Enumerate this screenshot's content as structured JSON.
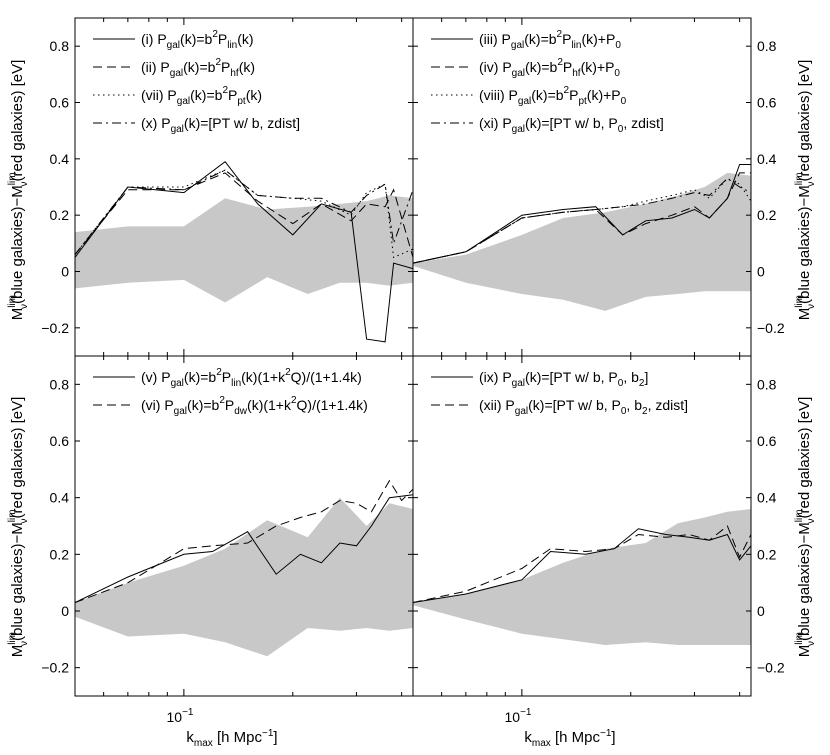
{
  "figure": {
    "xlabel": "k_max [h Mpc^-1]",
    "ylabel_left": "M_ν^lim(blue galaxies)−M_ν^lim(red galaxies) [eV]",
    "ylabel_right": "M_ν^lim(blue galaxies)−M_ν^lim(red galaxies) [eV]",
    "xtick_label": "10^-1",
    "ytick_labels": [
      "−0.2",
      "0",
      "0.2",
      "0.4",
      "0.6",
      "0.8"
    ]
  },
  "chart_data": [
    {
      "type": "line",
      "panel": "top-left",
      "xscale": "log",
      "xlim": [
        0.05,
        0.43
      ],
      "ylim": [
        -0.3,
        0.9
      ],
      "band": {
        "x": [
          0.05,
          0.07,
          0.1,
          0.13,
          0.17,
          0.22,
          0.27,
          0.32,
          0.37,
          0.43
        ],
        "upper": [
          0.14,
          0.16,
          0.16,
          0.26,
          0.22,
          0.23,
          0.24,
          0.25,
          0.27,
          0.26
        ],
        "lower": [
          -0.06,
          -0.04,
          -0.03,
          -0.11,
          -0.02,
          -0.08,
          -0.04,
          -0.04,
          -0.05,
          -0.04
        ]
      },
      "legend": {
        "position": "top-left",
        "entries": [
          {
            "prefix": "(i) P",
            "sub1": "gal",
            "mid": "(k)=b",
            "sup": "2",
            "mid2": "P",
            "sub2": "lin",
            "tail": "(k)"
          },
          {
            "prefix": "(ii) P",
            "sub1": "gal",
            "mid": "(k)=b",
            "sup": "2",
            "mid2": "P",
            "sub2": "hf",
            "tail": "(k)"
          },
          {
            "prefix": "(vii) P",
            "sub1": "gal",
            "mid": "(k)=b",
            "sup": "2",
            "mid2": "P",
            "sub2": "pt",
            "tail": "(k)"
          },
          {
            "prefix": "(x) P",
            "sub1": "gal",
            "mid": "(k)=[PT w/ b, zdist]",
            "sup": "",
            "mid2": "",
            "sub2": "",
            "tail": ""
          }
        ]
      },
      "series": [
        {
          "name": "(i)",
          "style": "solid",
          "x": [
            0.05,
            0.07,
            0.1,
            0.13,
            0.16,
            0.2,
            0.24,
            0.29,
            0.32,
            0.36,
            0.38,
            0.43
          ],
          "y": [
            0.05,
            0.3,
            0.28,
            0.39,
            0.24,
            0.13,
            0.24,
            0.21,
            -0.24,
            -0.25,
            0.03,
            0.01
          ]
        },
        {
          "name": "(ii)",
          "style": "dashed",
          "x": [
            0.05,
            0.07,
            0.1,
            0.13,
            0.16,
            0.2,
            0.24,
            0.29,
            0.32,
            0.36,
            0.38,
            0.43
          ],
          "y": [
            0.06,
            0.29,
            0.29,
            0.35,
            0.25,
            0.17,
            0.24,
            0.18,
            0.24,
            0.23,
            0.29,
            0.05
          ]
        },
        {
          "name": "(vii)",
          "style": "dotted",
          "x": [
            0.05,
            0.07,
            0.1,
            0.13,
            0.16,
            0.2,
            0.24,
            0.29,
            0.32,
            0.36,
            0.38,
            0.43
          ],
          "y": [
            0.06,
            0.3,
            0.3,
            0.36,
            0.27,
            0.26,
            0.25,
            0.2,
            0.28,
            0.31,
            0.05,
            0.08
          ]
        },
        {
          "name": "(x)",
          "style": "dashdot",
          "x": [
            0.05,
            0.07,
            0.1,
            0.13,
            0.16,
            0.2,
            0.24,
            0.29,
            0.32,
            0.36,
            0.38,
            0.43
          ],
          "y": [
            0.06,
            0.3,
            0.29,
            0.36,
            0.27,
            0.26,
            0.26,
            0.21,
            0.27,
            0.31,
            0.1,
            0.29
          ]
        }
      ]
    },
    {
      "type": "line",
      "panel": "top-right",
      "xscale": "log",
      "xlim": [
        0.05,
        0.43
      ],
      "ylim": [
        -0.3,
        0.9
      ],
      "band": {
        "x": [
          0.05,
          0.07,
          0.1,
          0.13,
          0.17,
          0.22,
          0.27,
          0.32,
          0.37,
          0.43
        ],
        "upper": [
          0.03,
          0.06,
          0.13,
          0.19,
          0.21,
          0.24,
          0.27,
          0.3,
          0.35,
          0.34
        ],
        "lower": [
          0.02,
          -0.04,
          -0.08,
          -0.1,
          -0.14,
          -0.09,
          -0.08,
          -0.07,
          -0.07,
          -0.07
        ]
      },
      "legend": {
        "position": "top-left",
        "entries": [
          {
            "prefix": "(iii) P",
            "sub1": "gal",
            "mid": "(k)=b",
            "sup": "2",
            "mid2": "P",
            "sub2": "lin",
            "tail": "(k)+P",
            "sub3": "0"
          },
          {
            "prefix": "(iv) P",
            "sub1": "gal",
            "mid": "(k)=b",
            "sup": "2",
            "mid2": "P",
            "sub2": "hf",
            "tail": "(k)+P",
            "sub3": "0"
          },
          {
            "prefix": "(viii) P",
            "sub1": "gal",
            "mid": "(k)=b",
            "sup": "2",
            "mid2": "P",
            "sub2": "pt",
            "tail": "(k)+P",
            "sub3": "0"
          },
          {
            "prefix": "(xi) P",
            "sub1": "gal",
            "mid": "(k)=[PT w/ b, P",
            "sup": "",
            "mid2": "",
            "sub2": "0",
            "tail": ", zdist]",
            "sub3": ""
          }
        ]
      },
      "series": [
        {
          "name": "(iii)",
          "style": "solid",
          "x": [
            0.05,
            0.07,
            0.1,
            0.13,
            0.16,
            0.19,
            0.22,
            0.26,
            0.3,
            0.33,
            0.37,
            0.4,
            0.43
          ],
          "y": [
            0.03,
            0.07,
            0.2,
            0.22,
            0.23,
            0.13,
            0.18,
            0.19,
            0.22,
            0.19,
            0.26,
            0.38,
            0.38
          ]
        },
        {
          "name": "(iv)",
          "style": "dashed",
          "x": [
            0.05,
            0.07,
            0.1,
            0.13,
            0.16,
            0.19,
            0.22,
            0.26,
            0.3,
            0.33,
            0.37,
            0.4,
            0.43
          ],
          "y": [
            0.03,
            0.07,
            0.19,
            0.21,
            0.22,
            0.13,
            0.17,
            0.2,
            0.23,
            0.19,
            0.26,
            0.35,
            0.35
          ]
        },
        {
          "name": "(viii)",
          "style": "dotted",
          "x": [
            0.05,
            0.07,
            0.1,
            0.13,
            0.16,
            0.19,
            0.22,
            0.26,
            0.3,
            0.33,
            0.37,
            0.4,
            0.43
          ],
          "y": [
            0.03,
            0.07,
            0.19,
            0.21,
            0.22,
            0.23,
            0.25,
            0.27,
            0.29,
            0.26,
            0.33,
            0.31,
            0.25
          ]
        },
        {
          "name": "(xi)",
          "style": "dashdot",
          "x": [
            0.05,
            0.07,
            0.1,
            0.13,
            0.16,
            0.19,
            0.22,
            0.26,
            0.3,
            0.33,
            0.37,
            0.4,
            0.43
          ],
          "y": [
            0.03,
            0.07,
            0.19,
            0.21,
            0.22,
            0.23,
            0.24,
            0.26,
            0.28,
            0.27,
            0.33,
            0.3,
            0.28
          ]
        }
      ]
    },
    {
      "type": "line",
      "panel": "bottom-left",
      "xscale": "log",
      "xlim": [
        0.05,
        0.43
      ],
      "ylim": [
        -0.3,
        0.9
      ],
      "band": {
        "x": [
          0.05,
          0.07,
          0.1,
          0.13,
          0.17,
          0.22,
          0.27,
          0.32,
          0.37,
          0.43
        ],
        "upper": [
          0.03,
          0.1,
          0.16,
          0.22,
          0.32,
          0.26,
          0.4,
          0.3,
          0.38,
          0.36
        ],
        "lower": [
          -0.02,
          -0.09,
          -0.08,
          -0.11,
          -0.16,
          -0.06,
          -0.07,
          -0.06,
          -0.07,
          -0.06
        ]
      },
      "legend": {
        "position": "top-left",
        "entries": [
          {
            "prefix": "(v) P",
            "sub1": "gal",
            "mid": "(k)=b",
            "sup": "2",
            "mid2": "P",
            "sub2": "lin",
            "tail": "(k)(1+k",
            "sup2": "2",
            "tail2": "Q)/(1+1.4k)"
          },
          {
            "prefix": "(vi) P",
            "sub1": "gal",
            "mid": "(k)=b",
            "sup": "2",
            "mid2": "P",
            "sub2": "dw",
            "tail": "(k)(1+k",
            "sup2": "2",
            "tail2": "Q)/(1+1.4k)"
          }
        ]
      },
      "series": [
        {
          "name": "(v)",
          "style": "solid",
          "x": [
            0.05,
            0.07,
            0.1,
            0.12,
            0.15,
            0.18,
            0.21,
            0.24,
            0.27,
            0.3,
            0.33,
            0.37,
            0.43
          ],
          "y": [
            0.03,
            0.12,
            0.2,
            0.21,
            0.28,
            0.13,
            0.2,
            0.17,
            0.24,
            0.23,
            0.3,
            0.4,
            0.41
          ]
        },
        {
          "name": "(vi)",
          "style": "dashed",
          "x": [
            0.05,
            0.07,
            0.1,
            0.12,
            0.15,
            0.18,
            0.21,
            0.24,
            0.27,
            0.3,
            0.33,
            0.37,
            0.4,
            0.43
          ],
          "y": [
            0.03,
            0.1,
            0.22,
            0.23,
            0.24,
            0.3,
            0.33,
            0.35,
            0.39,
            0.38,
            0.35,
            0.46,
            0.39,
            0.43
          ]
        }
      ]
    },
    {
      "type": "line",
      "panel": "bottom-right",
      "xscale": "log",
      "xlim": [
        0.05,
        0.43
      ],
      "ylim": [
        -0.3,
        0.9
      ],
      "band": {
        "x": [
          0.05,
          0.07,
          0.1,
          0.13,
          0.17,
          0.22,
          0.27,
          0.32,
          0.37,
          0.43
        ],
        "upper": [
          0.03,
          0.06,
          0.11,
          0.17,
          0.22,
          0.24,
          0.31,
          0.33,
          0.35,
          0.36
        ],
        "lower": [
          0.02,
          -0.03,
          -0.08,
          -0.1,
          -0.12,
          -0.11,
          -0.12,
          -0.12,
          -0.12,
          -0.12
        ]
      },
      "legend": {
        "position": "top-left",
        "entries": [
          {
            "prefix": "(ix) P",
            "sub1": "gal",
            "mid": "(k)=[PT w/ b, P",
            "sub2": "0",
            "tail": ", b",
            "sub3": "2",
            "tail2": "]"
          },
          {
            "prefix": "(xii) P",
            "sub1": "gal",
            "mid": "(k)=[PT w/ b, P",
            "sub2": "0",
            "tail": ", b",
            "sub3": "2",
            "tail2": ", zdist]"
          }
        ]
      },
      "series": [
        {
          "name": "(ix)",
          "style": "solid",
          "x": [
            0.05,
            0.07,
            0.1,
            0.12,
            0.15,
            0.18,
            0.21,
            0.25,
            0.29,
            0.33,
            0.37,
            0.4,
            0.43
          ],
          "y": [
            0.03,
            0.06,
            0.11,
            0.21,
            0.2,
            0.22,
            0.29,
            0.27,
            0.26,
            0.25,
            0.27,
            0.18,
            0.23
          ]
        },
        {
          "name": "(xii)",
          "style": "dashed",
          "x": [
            0.05,
            0.07,
            0.1,
            0.12,
            0.15,
            0.18,
            0.21,
            0.25,
            0.29,
            0.33,
            0.37,
            0.4,
            0.43
          ],
          "y": [
            0.03,
            0.07,
            0.15,
            0.22,
            0.21,
            0.22,
            0.27,
            0.26,
            0.27,
            0.25,
            0.3,
            0.19,
            0.27
          ]
        }
      ]
    }
  ]
}
